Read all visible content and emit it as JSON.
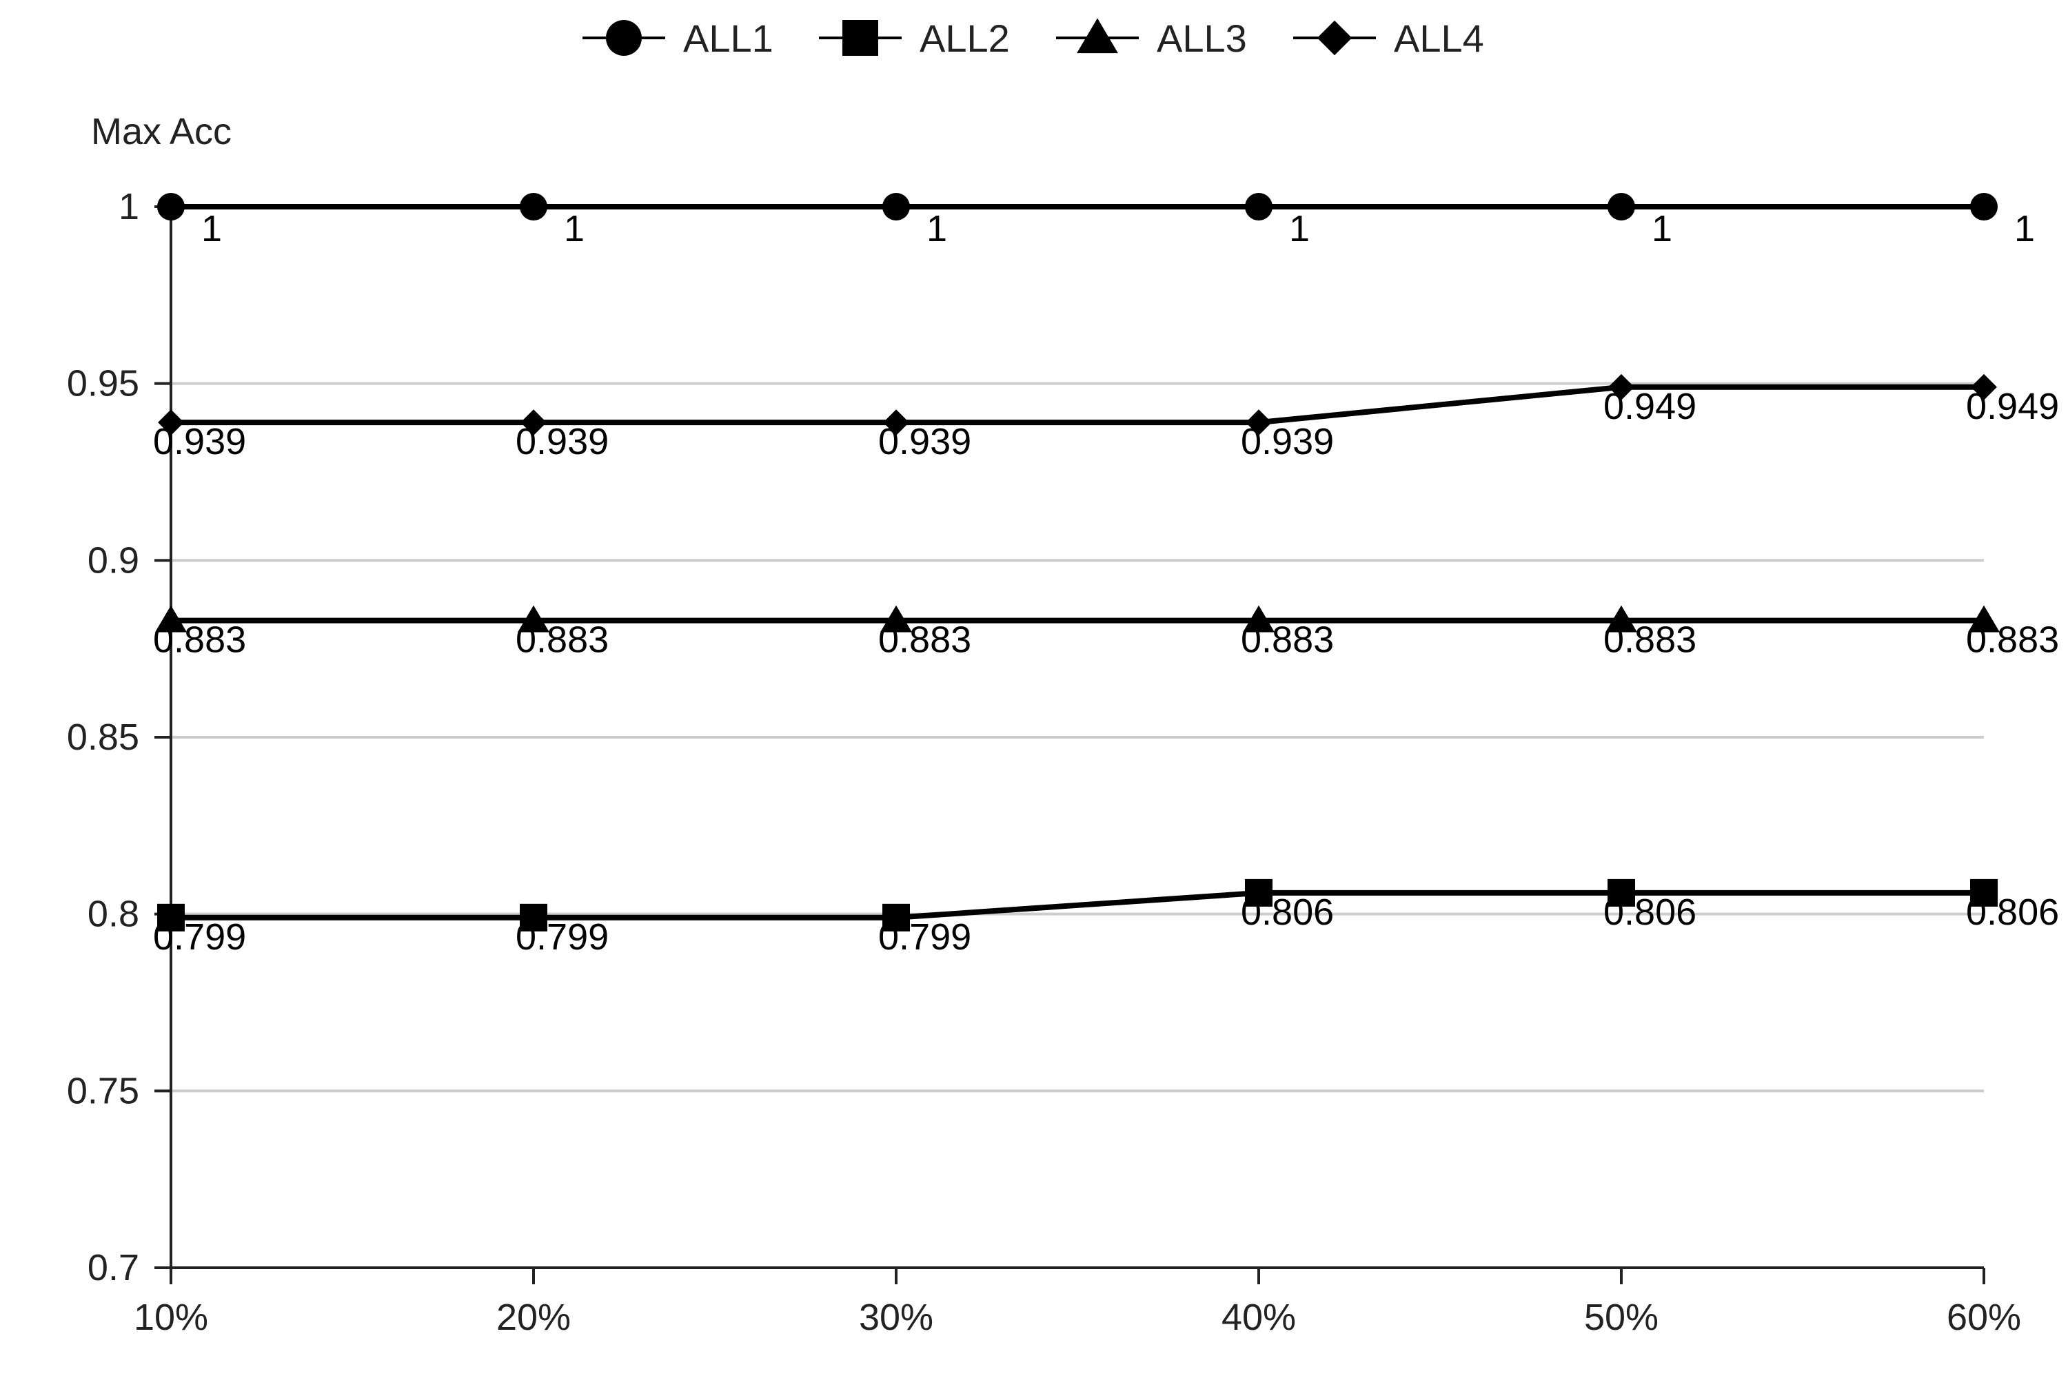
{
  "chart_data": {
    "type": "line",
    "title": "",
    "xlabel": "",
    "ylabel": "Max Acc",
    "categories": [
      "10%",
      "20%",
      "30%",
      "40%",
      "50%",
      "60%"
    ],
    "ylim": [
      0.7,
      1
    ],
    "yticks": [
      0.7,
      0.75,
      0.8,
      0.85,
      0.9,
      0.95,
      1
    ],
    "ytick_labels": [
      "0.7",
      "0.75",
      "0.8",
      "0.85",
      "0.9",
      "0.95",
      "1"
    ],
    "grid": "horizontal",
    "legend_position": "top-center",
    "colors": {
      "line": "#000000",
      "grid": "#cccccc",
      "axis": "#222222",
      "text": "#222222"
    },
    "series": [
      {
        "name": "ALL1",
        "marker": "circle",
        "values": [
          1,
          1,
          1,
          1,
          1,
          1
        ],
        "labels": [
          "1",
          "1",
          "1",
          "1",
          "1",
          "1"
        ]
      },
      {
        "name": "ALL2",
        "marker": "square",
        "values": [
          0.799,
          0.799,
          0.799,
          0.806,
          0.806,
          0.806
        ],
        "labels": [
          "0.799",
          "0.799",
          "0.799",
          "0.806",
          "0.806",
          "0.806"
        ]
      },
      {
        "name": "ALL3",
        "marker": "triangle",
        "values": [
          0.883,
          0.883,
          0.883,
          0.883,
          0.883,
          0.883
        ],
        "labels": [
          "0.883",
          "0.883",
          "0.883",
          "0.883",
          "0.883",
          "0.883"
        ]
      },
      {
        "name": "ALL4",
        "marker": "diamond",
        "values": [
          0.939,
          0.939,
          0.939,
          0.939,
          0.949,
          0.949
        ],
        "labels": [
          "0.939",
          "0.939",
          "0.939",
          "0.939",
          "0.949",
          "0.949"
        ]
      }
    ]
  }
}
